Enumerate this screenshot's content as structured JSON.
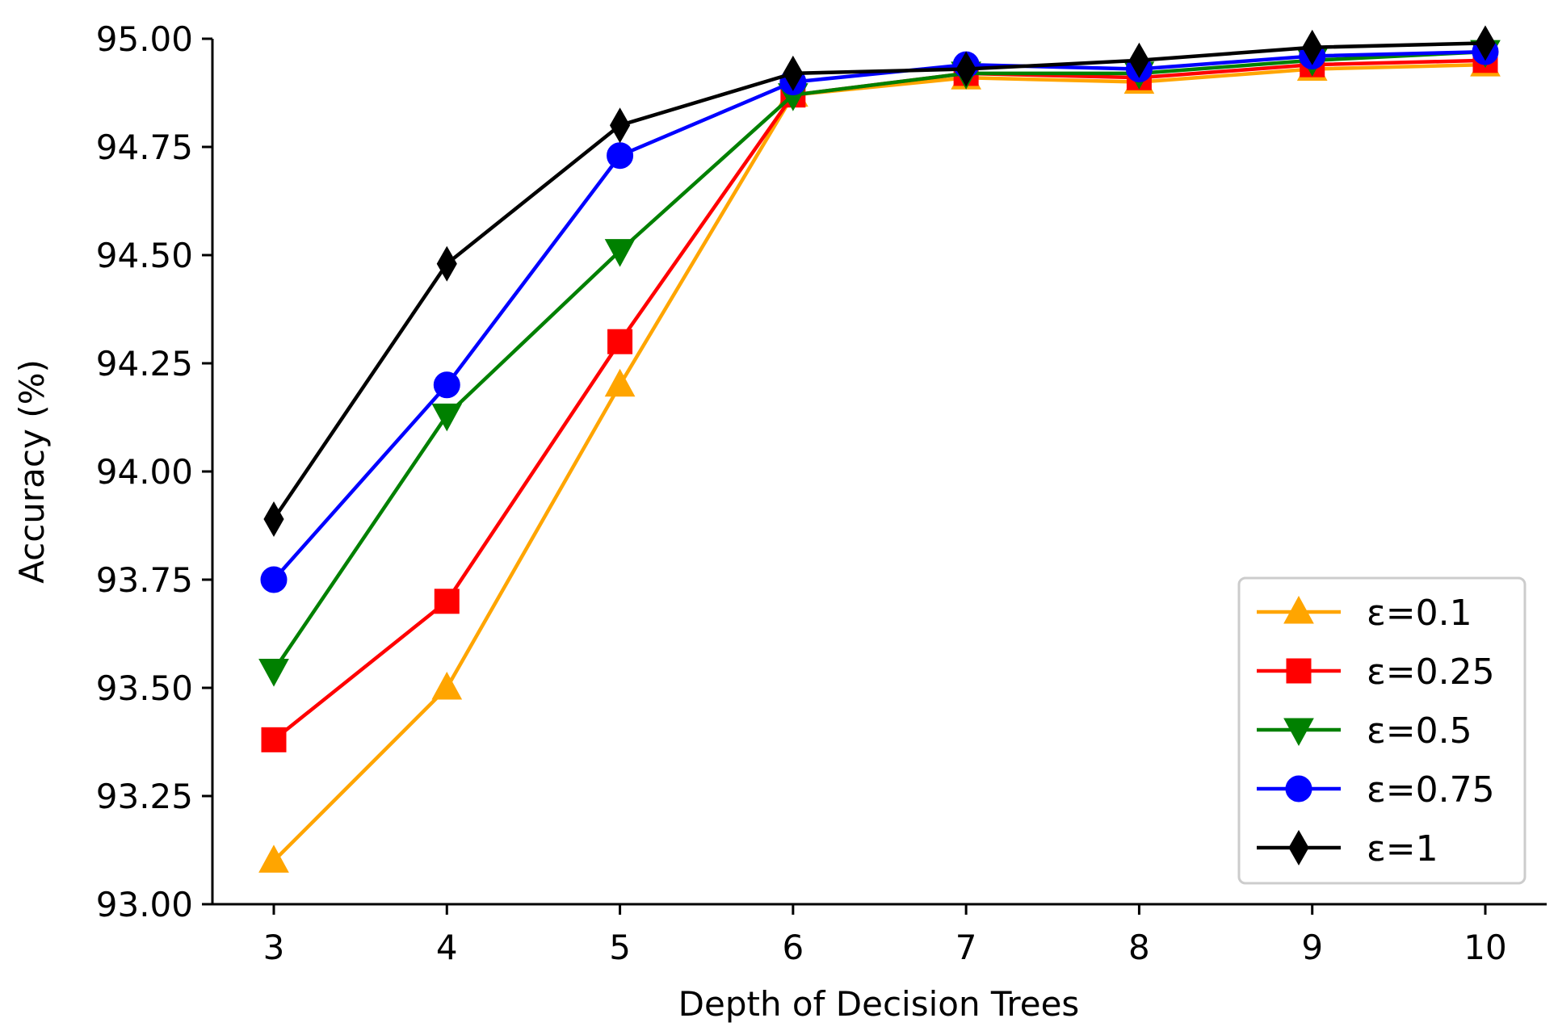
{
  "chart_data": {
    "type": "line",
    "title": "",
    "xlabel": "Depth of Decision Trees",
    "ylabel": "Accuracy (%)",
    "x": [
      3,
      4,
      5,
      6,
      7,
      8,
      9,
      10
    ],
    "xticks": [
      "3",
      "4",
      "5",
      "6",
      "7",
      "8",
      "9",
      "10"
    ],
    "ylim": [
      93.0,
      95.0
    ],
    "yticks": [
      "93.00",
      "93.25",
      "93.50",
      "93.75",
      "94.00",
      "94.25",
      "94.50",
      "94.75",
      "95.00"
    ],
    "grid": false,
    "legend_position": "lower-right",
    "series": [
      {
        "name": "ε=0.1",
        "color": "#FFA500",
        "marker": "triangle-up",
        "values": [
          93.1,
          93.5,
          94.2,
          94.87,
          94.91,
          94.9,
          94.93,
          94.94
        ]
      },
      {
        "name": "ε=0.25",
        "color": "#FF0000",
        "marker": "square",
        "values": [
          93.38,
          93.7,
          94.3,
          94.87,
          94.92,
          94.91,
          94.94,
          94.95
        ]
      },
      {
        "name": "ε=0.5",
        "color": "#008000",
        "marker": "triangle-down",
        "values": [
          93.54,
          94.13,
          94.51,
          94.87,
          94.92,
          94.92,
          94.95,
          94.97
        ]
      },
      {
        "name": "ε=0.75",
        "color": "#0000FF",
        "marker": "circle",
        "values": [
          93.75,
          94.2,
          94.73,
          94.9,
          94.94,
          94.93,
          94.96,
          94.97
        ]
      },
      {
        "name": "ε=1",
        "color": "#000000",
        "marker": "diamond",
        "values": [
          93.89,
          94.48,
          94.8,
          94.92,
          94.93,
          94.95,
          94.98,
          94.99
        ]
      }
    ]
  }
}
